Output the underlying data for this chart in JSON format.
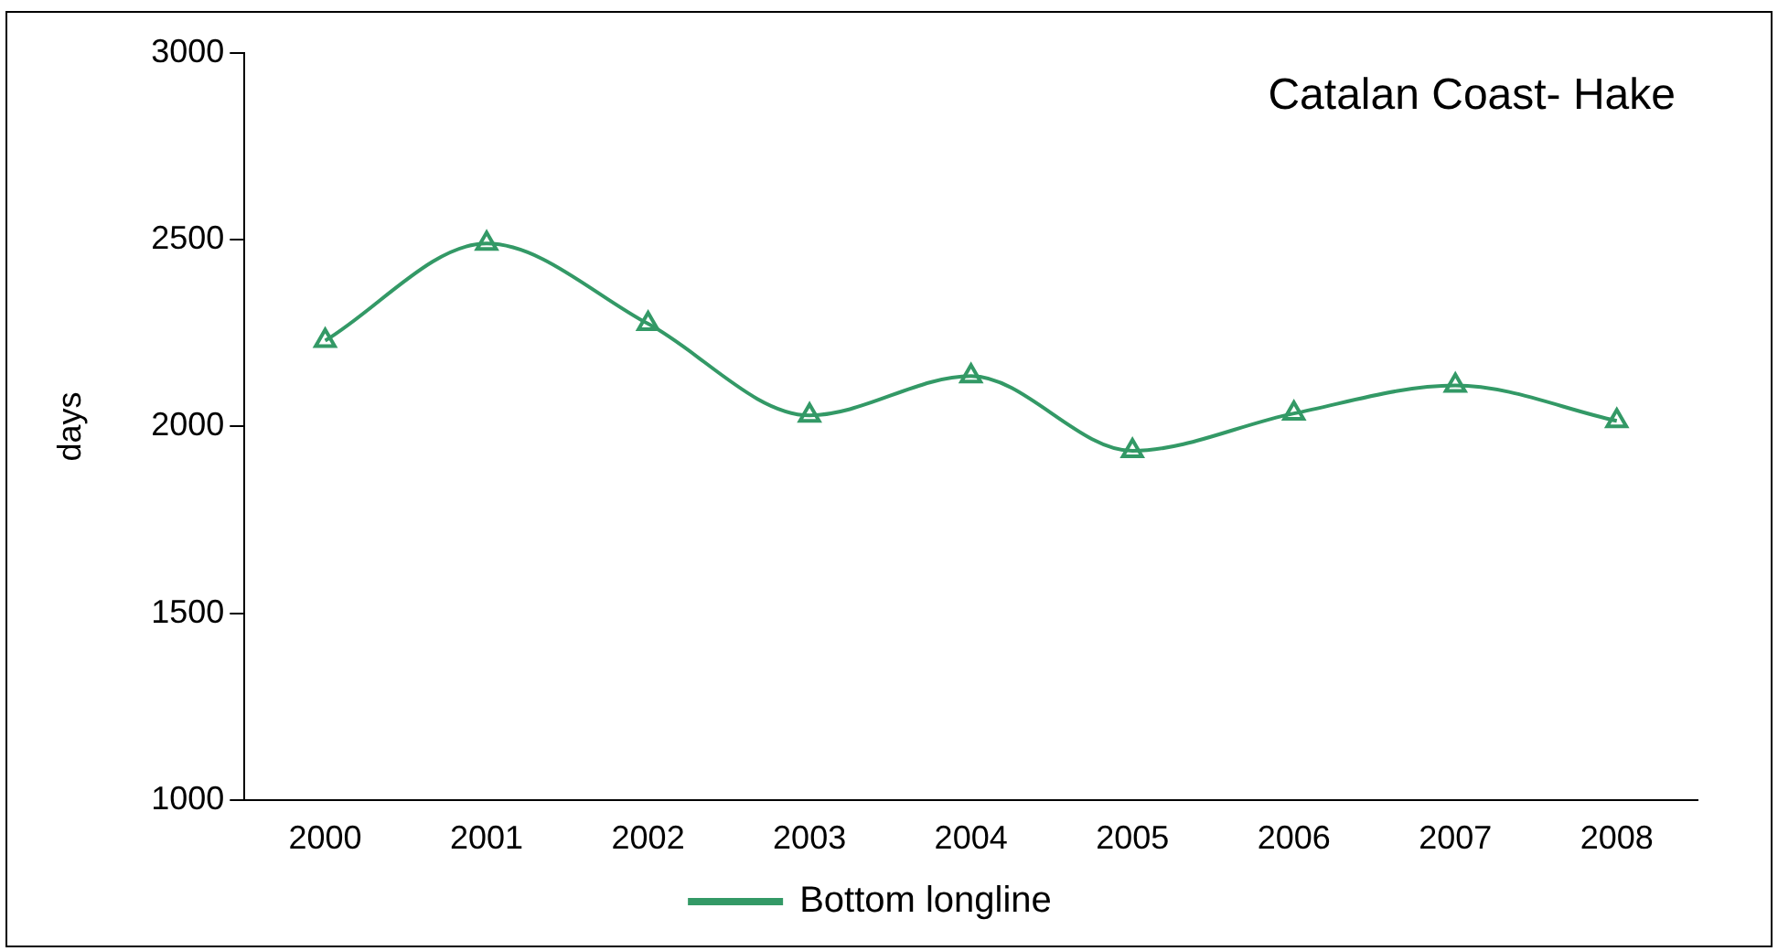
{
  "chart_data": {
    "type": "line",
    "title": "Catalan Coast- Hake",
    "ylabel": "days",
    "categories": [
      "2000",
      "2001",
      "2002",
      "2003",
      "2004",
      "2005",
      "2006",
      "2007",
      "2008"
    ],
    "series": [
      {
        "name": "Bottom longline",
        "color": "#339966",
        "values": [
          2230,
          2490,
          2275,
          2030,
          2135,
          1935,
          2035,
          2110,
          2015
        ]
      }
    ],
    "ylim": [
      1000,
      3000
    ],
    "yticks": [
      1000,
      1500,
      2000,
      2500,
      3000
    ],
    "grid": false,
    "legend": "bottom",
    "marker": "triangle",
    "line_style": "solid"
  }
}
